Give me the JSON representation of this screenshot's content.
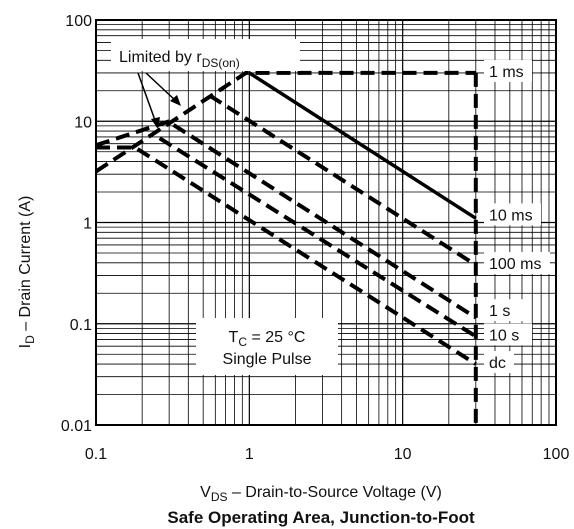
{
  "chart_data": {
    "type": "line",
    "title": "Safe Operating Area, Junction-to-Foot",
    "xlabel": {
      "main": "V",
      "sub": "DS",
      "rest": "  –  Drain-to-Source Voltage (V)"
    },
    "ylabel": {
      "main": "I",
      "sub": "D",
      "rest": " – Drain Current (A)"
    },
    "x_scale": "log",
    "y_scale": "log",
    "xlim": [
      0.1,
      100
    ],
    "ylim": [
      0.01,
      100
    ],
    "x_ticks": [
      "0.1",
      "1",
      "10",
      "100"
    ],
    "y_ticks": [
      "0.01",
      "0.1",
      "1",
      "10",
      "100"
    ],
    "grid": true,
    "annotations": {
      "limited": {
        "main": "Limited by r",
        "sub": "DS(on)"
      },
      "condition_line1": {
        "main": "T",
        "sub": "C",
        "rest": " = 25 °C"
      },
      "condition_line2": "Single Pulse"
    },
    "series": [
      {
        "name": "1 ms",
        "x": [
          0.1,
          0.95,
          30
        ],
        "y": [
          3.2,
          30,
          30
        ]
      },
      {
        "name": "10 ms",
        "x": [
          1.0,
          30
        ],
        "y": [
          30,
          1.1
        ]
      },
      {
        "name": "100 ms",
        "x": [
          0.55,
          30
        ],
        "y": [
          18,
          0.38
        ]
      },
      {
        "name": "1 s",
        "x": [
          0.32,
          30
        ],
        "y": [
          9.2,
          0.115
        ]
      },
      {
        "name": "10 s",
        "x": [
          0.26,
          30
        ],
        "y": [
          6.8,
          0.075
        ]
      },
      {
        "name": "dc",
        "x": [
          0.1,
          0.18,
          30
        ],
        "y": [
          5.5,
          5.5,
          0.04
        ]
      },
      {
        "name": "",
        "x": [
          0.1,
          0.3
        ],
        "y": [
          5.8,
          10
        ]
      },
      {
        "name": "",
        "x": [
          30,
          30
        ],
        "y": [
          30,
          0.01
        ]
      }
    ],
    "series_labels": [
      "1 ms",
      "10 ms",
      "100 ms",
      "1 s",
      "10 s",
      "dc"
    ]
  }
}
